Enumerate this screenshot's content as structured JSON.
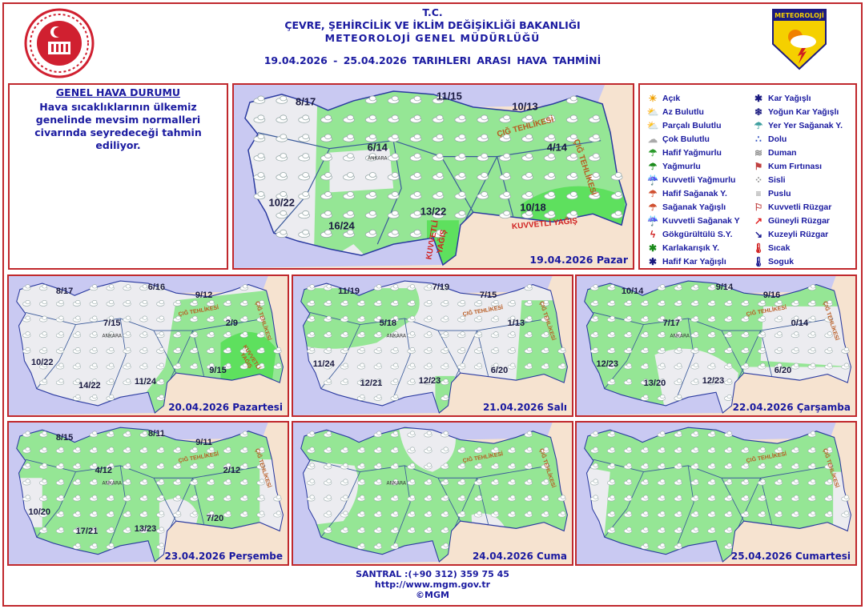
{
  "header": {
    "line1": "T.C.",
    "line2": "ÇEVRE, ŞEHİRCİLİK VE İKLİM DEĞİŞİKLİĞİ BAKANLIĞI",
    "line3": "METEOROLOJİ  GENEL  MÜDÜRLÜĞÜ",
    "date_range": "19.04.2026  -  25.04.2026   TARIHLERI  ARASI  HAVA  TAHMİNİ",
    "right_logo_text": "METEOROLOJİ"
  },
  "general": {
    "title": "GENEL HAVA DURUMU",
    "text": "Hava sıcaklıklarının ülkemiz genelinde mevsim normalleri civarında seyredeceği tahmin ediliyor."
  },
  "legend": {
    "col1": [
      {
        "icon": "sun-icon",
        "label": "Açık"
      },
      {
        "icon": "few-clouds-icon",
        "label": "Az Bulutlu"
      },
      {
        "icon": "partly-cloudy-icon",
        "label": "Parçalı Bulutlu"
      },
      {
        "icon": "cloudy-icon",
        "label": "Çok Bulutlu"
      },
      {
        "icon": "light-rain-icon",
        "label": "Hafif Yağmurlu"
      },
      {
        "icon": "rain-icon",
        "label": "Yağmurlu"
      },
      {
        "icon": "heavy-rain-icon",
        "label": "Kuvvetli Yağmurlu"
      },
      {
        "icon": "light-shower-icon",
        "label": "Hafif Sağanak Y."
      },
      {
        "icon": "shower-icon",
        "label": "Sağanak Yağışlı"
      },
      {
        "icon": "heavy-shower-icon",
        "label": "Kuvvetli Sağanak Y"
      },
      {
        "icon": "thunderstorm-icon",
        "label": "Gökgürültülü S.Y."
      },
      {
        "icon": "sleet-icon",
        "label": "Karlakarışık Y."
      },
      {
        "icon": "light-snow-icon",
        "label": "Hafif Kar Yağışlı"
      }
    ],
    "col2": [
      {
        "icon": "snow-icon",
        "label": "Kar Yağışlı"
      },
      {
        "icon": "heavy-snow-icon",
        "label": "Yoğun Kar Yağışlı"
      },
      {
        "icon": "local-shower-icon",
        "label": "Yer Yer Sağanak Y."
      },
      {
        "icon": "hail-icon",
        "label": "Dolu"
      },
      {
        "icon": "smoke-icon",
        "label": "Duman"
      },
      {
        "icon": "sandstorm-icon",
        "label": "Kum Fırtınası"
      },
      {
        "icon": "fog-icon",
        "label": "Sisli"
      },
      {
        "icon": "haze-icon",
        "label": "Puslu"
      },
      {
        "icon": "strong-wind-icon",
        "label": "Kuvvetli Rüzgar"
      },
      {
        "icon": "south-wind-icon",
        "label": "Güneyli Rüzgar"
      },
      {
        "icon": "north-wind-icon",
        "label": "Kuzeyli Rüzgar"
      },
      {
        "icon": "hot-icon",
        "label": "Sıcak"
      },
      {
        "icon": "cold-icon",
        "label": "Soguk"
      }
    ]
  },
  "maps": [
    {
      "day": "19.04.2026 Pazar",
      "city": "ANKARA",
      "temps": [
        "8/17",
        "11/15",
        "10/13",
        "6/14",
        "4/14",
        "10/22",
        "16/24",
        "13/22",
        "10/18"
      ],
      "avalanche": "ÇIĞ TEHLİKESİ",
      "heavy": "KUVVETLİ YAĞIŞ"
    },
    {
      "day": "20.04.2026 Pazartesi",
      "city": "ANKARA",
      "temps": [
        "8/17",
        "6/16",
        "9/12",
        "2/9",
        "7/15",
        "10/22",
        "14/22",
        "11/24",
        "9/15"
      ],
      "avalanche": "ÇIĞ TEHLİKESİ",
      "heavy": "KUVVETLİ YAĞIŞ"
    },
    {
      "day": "21.04.2026 Salı",
      "city": "ANKARA",
      "temps": [
        "11/19",
        "7/19",
        "7/15",
        "5/18",
        "1/13",
        "11/24",
        "12/21",
        "12/23",
        "6/20"
      ],
      "avalanche": "ÇIĞ TEHLİKESİ"
    },
    {
      "day": "22.04.2026 Çarşamba",
      "city": "ANKARA",
      "temps": [
        "10/14",
        "9/14",
        "9/16",
        "7/17",
        "0/14",
        "12/23",
        "13/20",
        "12/23",
        "6/20"
      ],
      "avalanche": "ÇIĞ TEHLİKESİ"
    },
    {
      "day": "23.04.2026 Perşembe",
      "city": "ANKARA",
      "temps": [
        "8/15",
        "8/11",
        "9/11",
        "4/12",
        "2/12",
        "10/20",
        "17/21",
        "13/23",
        "7/20"
      ],
      "avalanche": "ÇIĞ TEHLİKESİ"
    },
    {
      "day": "24.04.2026 Cuma",
      "city": "ANKARA",
      "avalanche": "ÇIĞ TEHLİKESİ"
    },
    {
      "day": "25.04.2026 Cumartesi",
      "avalanche": "ÇIĞ TEHLİKESİ"
    }
  ],
  "footer": {
    "phone": "SANTRAL :(+90 312) 359 75 45",
    "url": "http://www.mgm.gov.tr",
    "copyright": "©MGM"
  },
  "colors": {
    "border": "#c0282d",
    "text": "#1a1aa0",
    "sea": "#c9c9f2",
    "land": "#ececf0",
    "green": "#95e695",
    "heavy_green": "#5ee05e",
    "neighbor": "#f6e3d0"
  }
}
